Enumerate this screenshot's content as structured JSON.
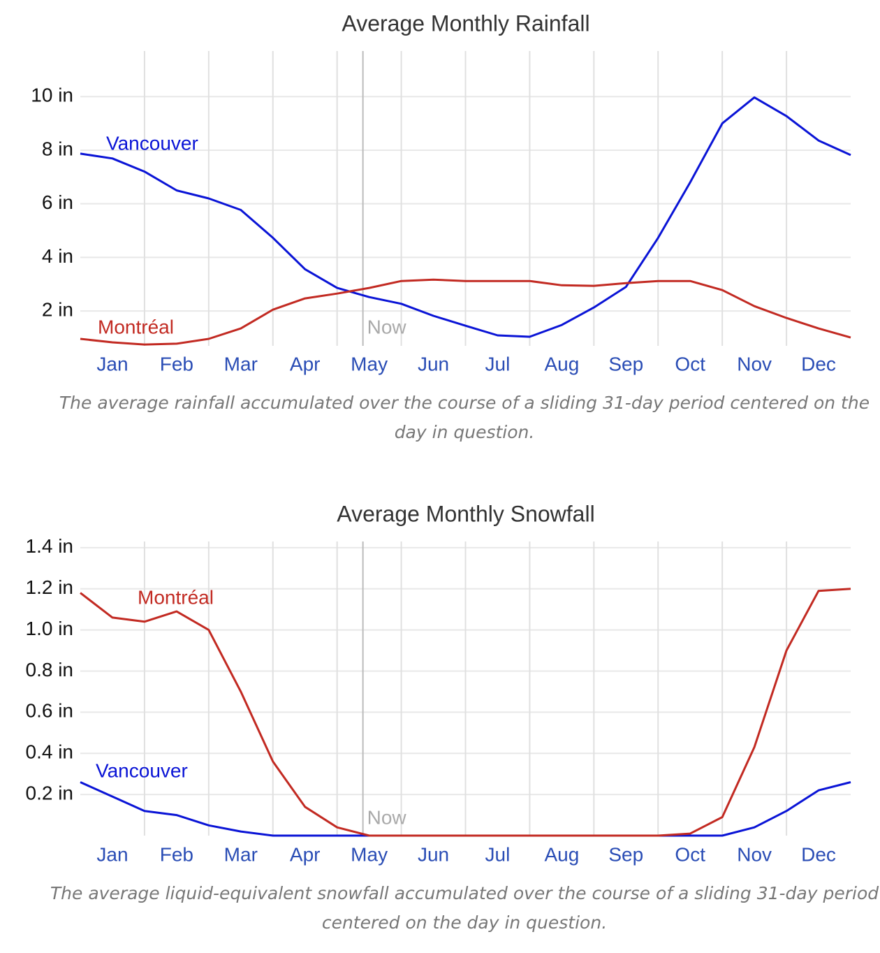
{
  "chart_data": [
    {
      "type": "line",
      "title": "Average Monthly Rainfall",
      "caption": "The average rainfall accumulated over the course of a sliding 31-day period centered on the day in question.",
      "categories": [
        null,
        "Jan",
        null,
        "Feb",
        null,
        "Mar",
        null,
        "Apr",
        null,
        "May",
        null,
        "Jun",
        null,
        "Jul",
        null,
        "Aug",
        null,
        "Sep",
        null,
        "Oct",
        null,
        "Nov",
        null,
        "Dec",
        null
      ],
      "series": [
        {
          "name": "Vancouver",
          "color": "#0a14d6",
          "values": [
            7.87,
            7.69,
            7.2,
            6.5,
            6.2,
            5.77,
            4.73,
            3.56,
            2.86,
            2.52,
            2.27,
            1.82,
            1.45,
            1.09,
            1.04,
            1.48,
            2.13,
            2.9,
            4.73,
            6.8,
            9.0,
            9.97,
            9.27,
            8.36,
            7.82
          ]
        },
        {
          "name": "Montréal",
          "color": "#c22a22",
          "values": [
            0.96,
            0.83,
            0.75,
            0.78,
            0.96,
            1.35,
            2.05,
            2.47,
            2.65,
            2.86,
            3.12,
            3.17,
            3.12,
            3.12,
            3.12,
            2.96,
            2.94,
            3.04,
            3.12,
            3.12,
            2.78,
            2.18,
            1.74,
            1.35,
            1.01
          ]
        }
      ],
      "ylim": [
        0.7,
        11.7
      ],
      "yticks": [
        {
          "value": 2,
          "label": "2 in"
        },
        {
          "value": 4,
          "label": "4 in"
        },
        {
          "value": 6,
          "label": "6 in"
        },
        {
          "value": 8,
          "label": "8 in"
        },
        {
          "value": 10,
          "label": "10 in"
        }
      ],
      "grid": true,
      "annotations": [
        {
          "text": "Now",
          "x": "May"
        }
      ]
    },
    {
      "type": "line",
      "title": "Average Monthly Snowfall",
      "caption": "The average liquid-equivalent snowfall accumulated over the course of a sliding 31-day period centered on the day in question.",
      "categories": [
        null,
        "Jan",
        null,
        "Feb",
        null,
        "Mar",
        null,
        "Apr",
        null,
        "May",
        null,
        "Jun",
        null,
        "Jul",
        null,
        "Aug",
        null,
        "Sep",
        null,
        "Oct",
        null,
        "Nov",
        null,
        "Dec",
        null
      ],
      "series": [
        {
          "name": "Vancouver",
          "color": "#0a14d6",
          "values": [
            0.26,
            0.19,
            0.12,
            0.1,
            0.05,
            0.02,
            0,
            0,
            0,
            0,
            0,
            0,
            0,
            0,
            0,
            0,
            0,
            0,
            0,
            0,
            0,
            0.04,
            0.12,
            0.22,
            0.26
          ]
        },
        {
          "name": "Montréal",
          "color": "#c22a22",
          "values": [
            1.18,
            1.06,
            1.04,
            1.09,
            1.0,
            0.7,
            0.36,
            0.14,
            0.04,
            0,
            0,
            0,
            0,
            0,
            0,
            0,
            0,
            0,
            0,
            0.01,
            0.09,
            0.43,
            0.9,
            1.19,
            1.2
          ]
        }
      ],
      "ylim": [
        0,
        1.43
      ],
      "yticks": [
        {
          "value": 0.2,
          "label": "0.2 in"
        },
        {
          "value": 0.4,
          "label": "0.4 in"
        },
        {
          "value": 0.6,
          "label": "0.6 in"
        },
        {
          "value": 0.8,
          "label": "0.8 in"
        },
        {
          "value": 1,
          "label": "1.0 in"
        },
        {
          "value": 1.2,
          "label": "1.2 in"
        },
        {
          "value": 1.4,
          "label": "1.4 in"
        }
      ],
      "grid": true,
      "annotations": [
        {
          "text": "Now",
          "x": "May"
        }
      ]
    }
  ]
}
